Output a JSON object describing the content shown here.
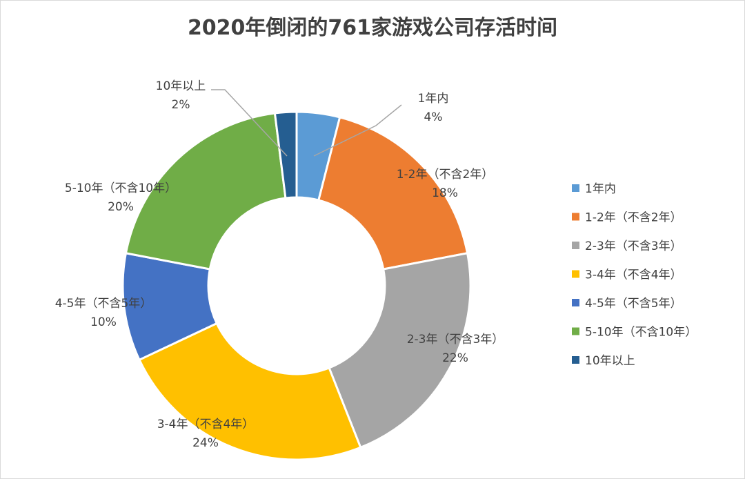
{
  "chart_data": {
    "type": "pie",
    "variant": "doughnut",
    "title": "2020年倒闭的761家游戏公司存活时间",
    "legend_position": "right",
    "slices": [
      {
        "label": "1年内",
        "value": 4,
        "display": "4%",
        "color": "#5b9bd5"
      },
      {
        "label": "1-2年（不含2年）",
        "value": 18,
        "display": "18%",
        "color": "#ed7d31"
      },
      {
        "label": "2-3年（不含3年）",
        "value": 22,
        "display": "22%",
        "color": "#a5a5a5"
      },
      {
        "label": "3-4年（不含4年）",
        "value": 24,
        "display": "24%",
        "color": "#ffc000"
      },
      {
        "label": "4-5年（不含5年）",
        "value": 10,
        "display": "10%",
        "color": "#4472c4"
      },
      {
        "label": "5-10年（不含10年）",
        "value": 20,
        "display": "20%",
        "color": "#70ad47"
      },
      {
        "label": "10年以上",
        "value": 2,
        "display": "2%",
        "color": "#255e91"
      }
    ]
  }
}
